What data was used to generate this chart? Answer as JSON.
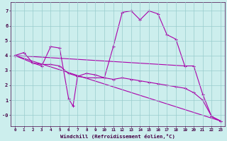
{
  "xlabel": "Windchill (Refroidissement éolien,°C)",
  "background_color": "#cceeed",
  "line_color": "#aa00aa",
  "grid_color": "#99cccc",
  "xlim": [
    -0.5,
    23.5
  ],
  "ylim": [
    -0.75,
    7.6
  ],
  "yticks": [
    0,
    1,
    2,
    3,
    4,
    5,
    6,
    7
  ],
  "ytick_labels": [
    "-0",
    "1",
    "2",
    "3",
    "4",
    "5",
    "6",
    "7"
  ],
  "xticks": [
    0,
    1,
    2,
    3,
    4,
    5,
    6,
    7,
    8,
    9,
    10,
    11,
    12,
    13,
    14,
    15,
    16,
    17,
    18,
    19,
    20,
    21,
    22,
    23
  ],
  "series": [
    {
      "x": [
        0,
        1,
        2,
        3,
        4,
        5,
        6,
        6.5,
        7,
        8,
        9,
        10,
        11,
        12,
        13,
        14,
        15,
        16,
        17,
        18,
        19,
        20,
        21,
        22,
        23
      ],
      "y": [
        4.0,
        4.2,
        3.5,
        3.3,
        4.6,
        4.5,
        1.1,
        0.6,
        2.6,
        2.8,
        2.7,
        2.5,
        4.6,
        6.9,
        7.0,
        6.4,
        7.0,
        6.8,
        5.4,
        5.1,
        3.3,
        3.3,
        1.4,
        -0.1,
        -0.4
      ],
      "marker": "+"
    },
    {
      "x": [
        0,
        19
      ],
      "y": [
        4.0,
        3.3
      ],
      "marker": null
    },
    {
      "x": [
        0,
        23
      ],
      "y": [
        4.0,
        -0.4
      ],
      "marker": null
    },
    {
      "x": [
        0,
        2,
        3,
        4,
        5,
        6,
        7,
        8,
        9,
        10,
        11,
        12,
        13,
        14,
        15,
        16,
        17,
        18,
        19,
        20,
        21,
        22,
        23
      ],
      "y": [
        4.0,
        3.5,
        3.4,
        3.4,
        3.3,
        2.8,
        2.6,
        2.5,
        2.5,
        2.5,
        2.4,
        2.5,
        2.4,
        2.3,
        2.2,
        2.1,
        2.0,
        1.9,
        1.8,
        1.5,
        1.0,
        -0.1,
        -0.4
      ],
      "marker": "+"
    }
  ]
}
